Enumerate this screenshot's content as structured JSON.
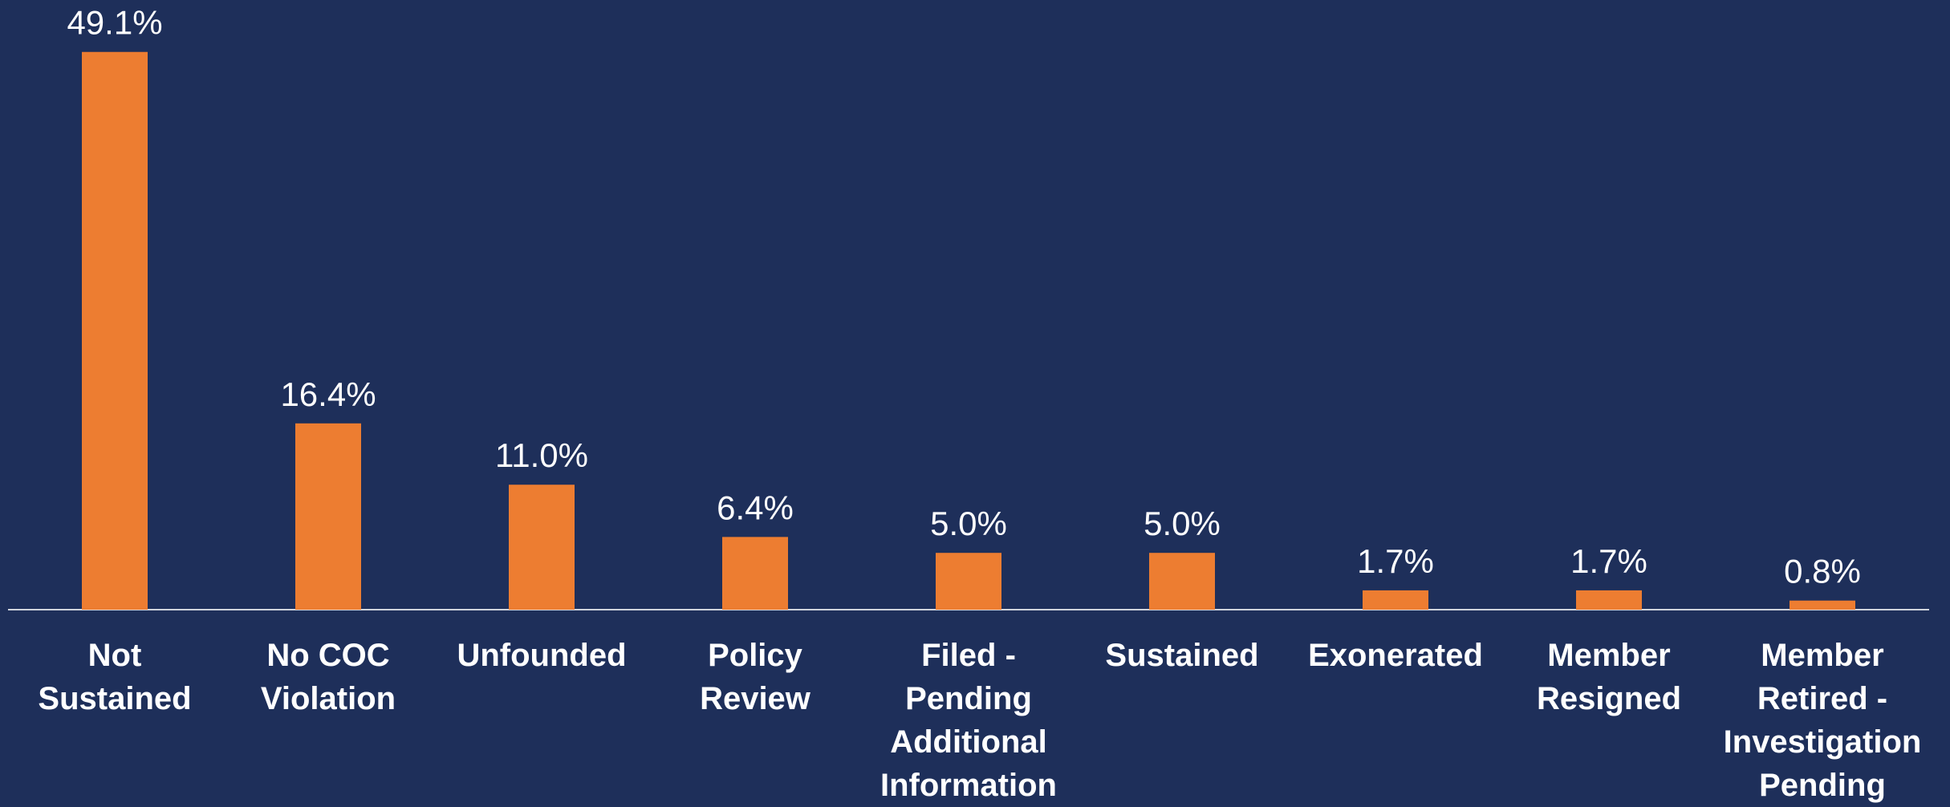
{
  "chart_data": {
    "type": "bar",
    "categories": [
      "Not Sustained",
      "No COC Violation",
      "Unfounded",
      "Policy Review",
      "Filed - Pending Additional Information",
      "Sustained",
      "Exonerated",
      "Member Resigned",
      "Member Retired - Investigation Pending"
    ],
    "values": [
      49.1,
      16.4,
      11.0,
      6.4,
      5.0,
      5.0,
      1.7,
      1.7,
      0.8
    ],
    "value_labels": [
      "49.1%",
      "16.4%",
      "11.0%",
      "6.4%",
      "5.0%",
      "5.0%",
      "1.7%",
      "1.7%",
      "0.8%"
    ],
    "color": "#ed7d31",
    "ylim": [
      0,
      50
    ]
  }
}
